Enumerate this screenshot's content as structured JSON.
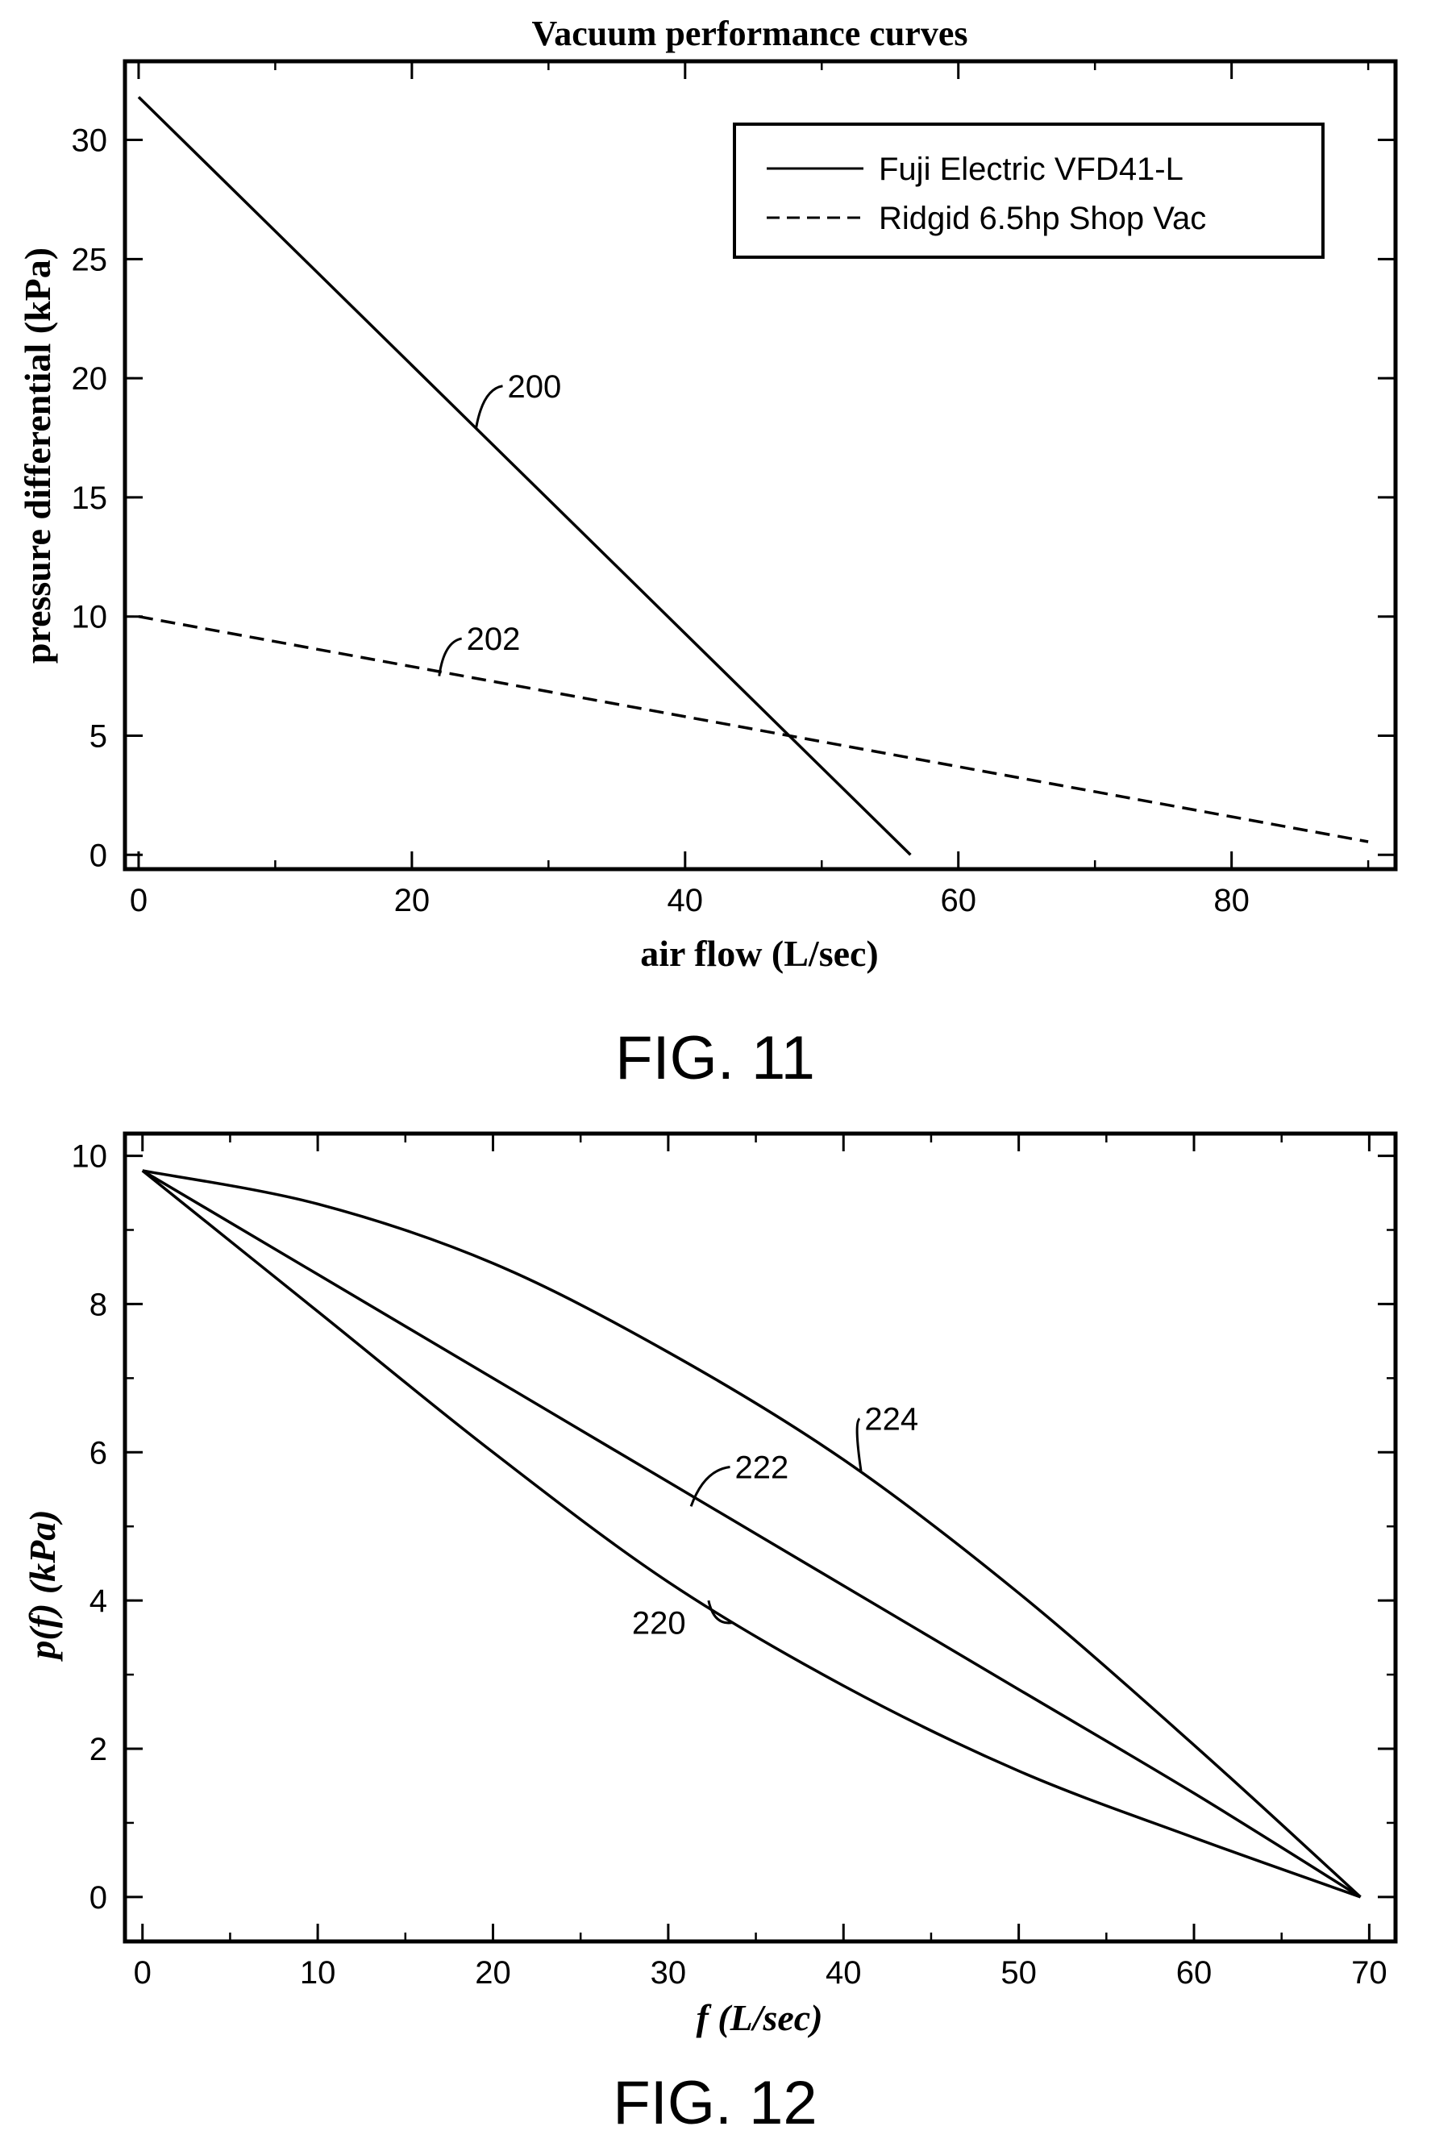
{
  "chart_data": [
    {
      "type": "line",
      "figure_label": "FIG. 11",
      "title": "Vacuum performance curves",
      "xlabel": "air flow (L/sec)",
      "ylabel": "pressure differential (kPa)",
      "xlim": [
        -1,
        92
      ],
      "ylim": [
        -0.6,
        33.3
      ],
      "xticks": [
        0,
        20,
        40,
        60,
        80
      ],
      "yticks": [
        0,
        5,
        10,
        15,
        20,
        25,
        30
      ],
      "grid": false,
      "legend_position": "top-right",
      "series": [
        {
          "name": "Fuji Electric VFD41-L",
          "style": "solid",
          "reference": "200",
          "x": [
            0,
            56.5
          ],
          "y": [
            31.8,
            0
          ]
        },
        {
          "name": "Ridgid 6.5hp Shop Vac",
          "style": "dashed",
          "reference": "202",
          "x": [
            0,
            90
          ],
          "y": [
            10.0,
            0.55
          ]
        }
      ],
      "callouts": [
        {
          "text": "200",
          "x": 27,
          "y": 19.2,
          "target_x": 24.7,
          "target_y": 17.9
        },
        {
          "text": "202",
          "x": 24,
          "y": 8.6,
          "target_x": 22,
          "target_y": 7.5
        }
      ]
    },
    {
      "type": "line",
      "figure_label": "FIG. 12",
      "title": "",
      "xlabel": "f (L/sec)",
      "ylabel": "p(f) (kPa)",
      "xlim": [
        -1,
        71.5
      ],
      "ylim": [
        -0.6,
        10.3
      ],
      "xticks": [
        0,
        10,
        20,
        30,
        40,
        50,
        60,
        70
      ],
      "yticks": [
        0,
        2,
        4,
        6,
        8,
        10
      ],
      "grid": false,
      "series": [
        {
          "reference": "220",
          "x": [
            0,
            10,
            20,
            30,
            40,
            50,
            60,
            69.5
          ],
          "y": [
            9.8,
            7.9,
            6.0,
            4.25,
            2.85,
            1.7,
            0.8,
            0
          ]
        },
        {
          "reference": "222",
          "x": [
            0,
            10,
            20,
            30,
            40,
            50,
            60,
            69.5
          ],
          "y": [
            9.8,
            8.4,
            7.0,
            5.6,
            4.2,
            2.8,
            1.4,
            0
          ]
        },
        {
          "reference": "224",
          "x": [
            0,
            10,
            20,
            30,
            40,
            50,
            60,
            69.5
          ],
          "y": [
            9.8,
            9.35,
            8.55,
            7.35,
            5.9,
            4.1,
            2.05,
            0
          ]
        }
      ],
      "callouts": [
        {
          "text": "220",
          "x": 31,
          "y": 3.55,
          "target_x": 32.3,
          "target_y": 4.0
        },
        {
          "text": "222",
          "x": 33.8,
          "y": 5.65,
          "target_x": 31.3,
          "target_y": 5.27
        },
        {
          "text": "224",
          "x": 41.2,
          "y": 6.3,
          "target_x": 41.0,
          "target_y": 5.75
        }
      ]
    }
  ]
}
